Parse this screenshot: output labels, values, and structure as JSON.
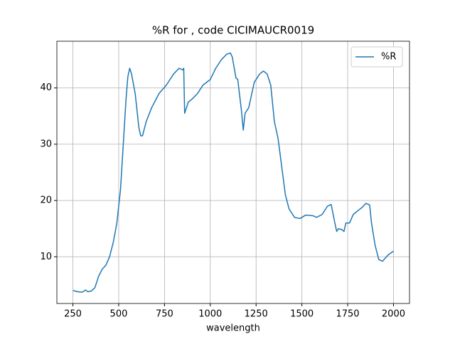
{
  "chart_data": {
    "type": "line",
    "title": "%R for  , code CICIMAUCR0019",
    "x_label": "wavelength",
    "x": [
      250,
      275,
      300,
      320,
      330,
      350,
      370,
      390,
      410,
      430,
      450,
      470,
      490,
      510,
      525,
      540,
      550,
      560,
      570,
      590,
      610,
      620,
      630,
      650,
      680,
      720,
      760,
      800,
      830,
      850,
      855,
      860,
      880,
      900,
      930,
      960,
      1000,
      1030,
      1060,
      1090,
      1110,
      1120,
      1140,
      1150,
      1170,
      1180,
      1190,
      1210,
      1240,
      1270,
      1290,
      1310,
      1330,
      1350,
      1370,
      1390,
      1410,
      1430,
      1460,
      1490,
      1520,
      1560,
      1580,
      1610,
      1640,
      1660,
      1680,
      1690,
      1700,
      1720,
      1730,
      1740,
      1760,
      1780,
      1810,
      1830,
      1850,
      1870,
      1880,
      1900,
      1920,
      1940,
      1970,
      2000
    ],
    "series": [
      {
        "name": "%R",
        "color": "#1f77b4",
        "values": [
          4.0,
          3.8,
          3.7,
          4.1,
          3.8,
          3.9,
          4.5,
          6.5,
          7.8,
          8.5,
          10,
          12.5,
          16,
          22,
          30,
          38,
          42,
          43.5,
          42.5,
          39,
          33,
          31.5,
          31.5,
          34,
          36.5,
          39,
          40.5,
          42.5,
          43.5,
          43.2,
          43.5,
          35.5,
          37.5,
          38,
          39,
          40.5,
          41.5,
          43.5,
          45,
          46,
          46.2,
          45.5,
          41.8,
          41.5,
          36,
          32.5,
          35.5,
          36.5,
          41,
          42.5,
          43,
          42.5,
          40.5,
          34,
          31,
          26,
          21,
          18.5,
          17,
          16.8,
          17.4,
          17.3,
          17,
          17.5,
          19,
          19.3,
          16,
          14.5,
          15,
          14.8,
          14.5,
          16,
          16,
          17.5,
          18.3,
          18.8,
          19.5,
          19.2,
          16,
          12,
          9.5,
          9.2,
          10.3,
          11
        ]
      }
    ],
    "xlim": [
      162.5,
      2087.5
    ],
    "xticks": [
      250,
      500,
      750,
      1000,
      1250,
      1500,
      1750,
      2000
    ],
    "ylim": [
      1.7,
      48.3
    ],
    "yticks": [
      10,
      20,
      30,
      40
    ],
    "grid": true,
    "legend": "upper right"
  }
}
